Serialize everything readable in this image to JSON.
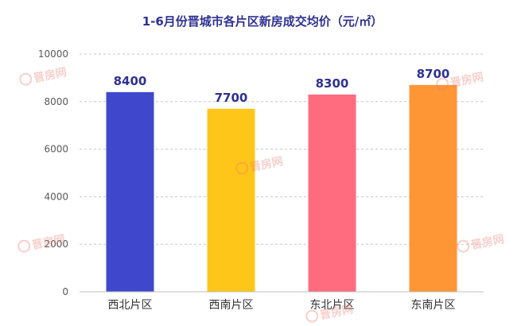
{
  "chart_data": {
    "type": "bar",
    "title": "1-6月份晋城市各片区新房成交均价（元/㎡）",
    "categories": [
      "西北片区",
      "西南片区",
      "东北片区",
      "东南片区"
    ],
    "values": [
      8400,
      7700,
      8300,
      8700
    ],
    "bar_colors": [
      "#3f48cc",
      "#ffc61a",
      "#ff6b7f",
      "#ff9636"
    ],
    "data_label_color": "#2e3192",
    "ylim": [
      0,
      10000
    ],
    "yticks": [
      0,
      2000,
      4000,
      6000,
      8000,
      10000
    ],
    "xlabel": "",
    "ylabel": "",
    "grid": true,
    "legend": "none"
  },
  "watermark": {
    "text": "晋房网"
  }
}
